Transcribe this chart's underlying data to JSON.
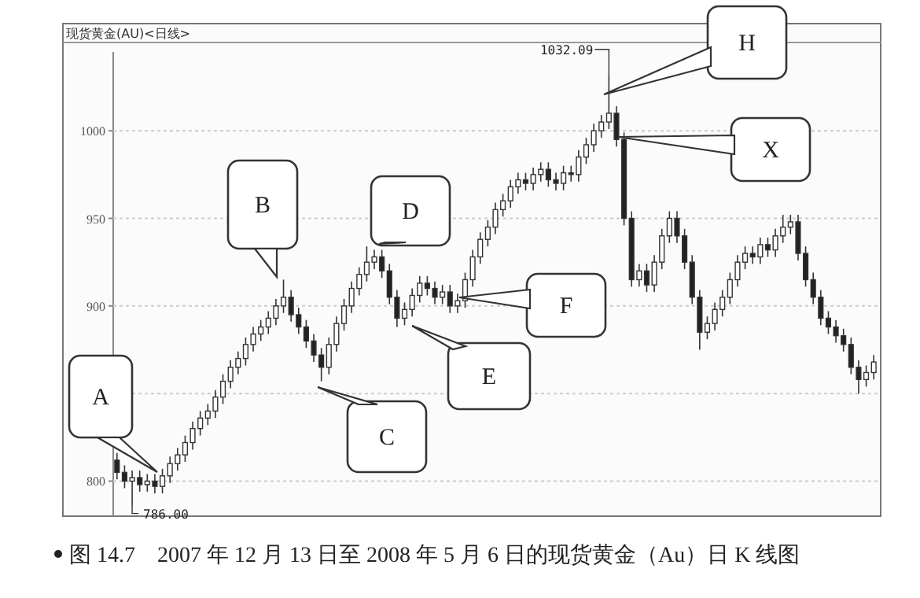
{
  "chart_data": {
    "type": "candlestick",
    "title": "现货黄金(AU)<日线>",
    "categories": [
      null,
      null,
      null,
      null,
      null,
      null,
      null,
      null,
      null,
      null,
      null,
      null,
      null,
      null,
      null,
      null,
      null,
      null,
      null,
      null,
      null,
      null,
      null,
      null,
      null,
      null,
      null,
      null,
      null,
      null,
      null,
      null,
      null,
      null,
      null,
      null,
      null,
      null,
      null,
      null,
      null,
      null,
      null,
      null,
      null,
      null,
      null,
      null,
      null,
      null,
      null,
      null,
      null,
      null,
      null,
      null,
      null,
      null,
      null,
      null,
      null,
      null,
      null,
      null,
      null,
      null,
      null,
      null,
      null,
      null,
      null,
      null,
      null,
      null,
      null,
      null,
      null,
      null,
      null,
      null,
      null,
      null,
      null,
      null,
      null,
      null,
      null,
      null,
      null,
      null,
      null,
      null,
      null,
      null,
      null,
      null,
      null,
      null,
      null,
      null,
      null
    ],
    "ohlc": [
      [
        812,
        816,
        801,
        805
      ],
      [
        805,
        809,
        796,
        800
      ],
      [
        800,
        806,
        786,
        802
      ],
      [
        802,
        806,
        794,
        798
      ],
      [
        798,
        804,
        794,
        800
      ],
      [
        800,
        804,
        793,
        797
      ],
      [
        797,
        807,
        793,
        803
      ],
      [
        803,
        814,
        799,
        810
      ],
      [
        810,
        819,
        806,
        815
      ],
      [
        815,
        826,
        811,
        822
      ],
      [
        822,
        834,
        818,
        830
      ],
      [
        830,
        840,
        826,
        836
      ],
      [
        836,
        844,
        832,
        840
      ],
      [
        840,
        852,
        836,
        848
      ],
      [
        848,
        861,
        844,
        857
      ],
      [
        857,
        869,
        853,
        865
      ],
      [
        865,
        874,
        861,
        870
      ],
      [
        870,
        882,
        866,
        878
      ],
      [
        878,
        888,
        874,
        884
      ],
      [
        884,
        892,
        880,
        888
      ],
      [
        888,
        897,
        884,
        893
      ],
      [
        893,
        904,
        889,
        900
      ],
      [
        900,
        915,
        896,
        905
      ],
      [
        905,
        909,
        891,
        895
      ],
      [
        895,
        899,
        884,
        888
      ],
      [
        888,
        892,
        876,
        880
      ],
      [
        880,
        884,
        868,
        872
      ],
      [
        872,
        876,
        857,
        865
      ],
      [
        865,
        882,
        861,
        878
      ],
      [
        878,
        894,
        874,
        890
      ],
      [
        890,
        904,
        886,
        900
      ],
      [
        900,
        914,
        896,
        910
      ],
      [
        910,
        922,
        906,
        918
      ],
      [
        918,
        934,
        914,
        925
      ],
      [
        925,
        932,
        921,
        928
      ],
      [
        928,
        932,
        916,
        920
      ],
      [
        920,
        924,
        901,
        905
      ],
      [
        905,
        909,
        888,
        893
      ],
      [
        893,
        902,
        889,
        898
      ],
      [
        898,
        910,
        894,
        906
      ],
      [
        906,
        917,
        902,
        913
      ],
      [
        913,
        917,
        906,
        910
      ],
      [
        910,
        914,
        901,
        905
      ],
      [
        905,
        912,
        901,
        908
      ],
      [
        908,
        912,
        896,
        900
      ],
      [
        900,
        907,
        896,
        903
      ],
      [
        903,
        919,
        899,
        915
      ],
      [
        915,
        932,
        911,
        928
      ],
      [
        928,
        942,
        924,
        938
      ],
      [
        938,
        949,
        934,
        945
      ],
      [
        945,
        959,
        941,
        955
      ],
      [
        955,
        964,
        951,
        960
      ],
      [
        960,
        972,
        956,
        968
      ],
      [
        968,
        976,
        964,
        972
      ],
      [
        972,
        976,
        966,
        970
      ],
      [
        970,
        979,
        966,
        975
      ],
      [
        975,
        982,
        971,
        978
      ],
      [
        978,
        982,
        968,
        972
      ],
      [
        972,
        976,
        966,
        970
      ],
      [
        970,
        980,
        966,
        976
      ],
      [
        976,
        980,
        971,
        975
      ],
      [
        975,
        989,
        971,
        985
      ],
      [
        985,
        996,
        981,
        992
      ],
      [
        992,
        1004,
        988,
        1000
      ],
      [
        1000,
        1009,
        996,
        1005
      ],
      [
        1005,
        1032.09,
        1001,
        1010
      ],
      [
        1010,
        1014,
        991,
        995
      ],
      [
        995,
        999,
        946,
        950
      ],
      [
        950,
        954,
        911,
        915
      ],
      [
        915,
        924,
        911,
        920
      ],
      [
        920,
        924,
        908,
        912
      ],
      [
        912,
        929,
        908,
        925
      ],
      [
        925,
        944,
        921,
        940
      ],
      [
        940,
        954,
        936,
        950
      ],
      [
        950,
        954,
        936,
        940
      ],
      [
        940,
        944,
        921,
        925
      ],
      [
        925,
        929,
        901,
        905
      ],
      [
        905,
        909,
        875,
        885
      ],
      [
        885,
        894,
        881,
        890
      ],
      [
        890,
        902,
        886,
        898
      ],
      [
        898,
        909,
        894,
        905
      ],
      [
        905,
        919,
        901,
        915
      ],
      [
        915,
        929,
        911,
        925
      ],
      [
        925,
        934,
        921,
        930
      ],
      [
        930,
        934,
        924,
        928
      ],
      [
        928,
        939,
        924,
        935
      ],
      [
        935,
        939,
        928,
        932
      ],
      [
        932,
        944,
        928,
        940
      ],
      [
        940,
        952,
        936,
        945
      ],
      [
        945,
        952,
        941,
        948
      ],
      [
        948,
        952,
        926,
        930
      ],
      [
        930,
        934,
        911,
        915
      ],
      [
        915,
        919,
        901,
        905
      ],
      [
        905,
        909,
        889,
        893
      ],
      [
        893,
        897,
        884,
        888
      ],
      [
        888,
        892,
        879,
        883
      ],
      [
        883,
        887,
        874,
        878
      ],
      [
        878,
        882,
        861,
        865
      ],
      [
        865,
        869,
        850,
        858
      ],
      [
        858,
        866,
        854,
        862
      ],
      [
        862,
        872,
        858,
        868
      ]
    ],
    "ylim": [
      780,
      1045
    ],
    "yticks": [
      800,
      {
        "value": 850,
        "label": null
      },
      900,
      950,
      1000
    ],
    "grid": "y",
    "annotations": [
      "A",
      "B",
      "C",
      "D",
      "E",
      "F",
      "H",
      "X",
      "1032.09",
      "786.00",
      "图 14.7　2007 年 12 月 13 日至 2008 年 5 月 6 日的现货黄金（Au）日 K 线图"
    ]
  }
}
